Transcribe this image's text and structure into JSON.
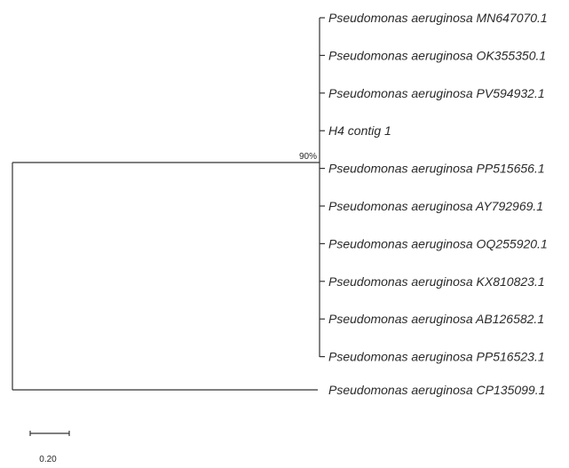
{
  "tree": {
    "leaves": [
      {
        "label": "Pseudomonas aeruginosa MN647070.1"
      },
      {
        "label": "Pseudomonas aeruginosa OK355350.1"
      },
      {
        "label": "Pseudomonas aeruginosa PV594932.1"
      },
      {
        "label": "H4 contig 1"
      },
      {
        "label": "Pseudomonas aeruginosa PP515656.1"
      },
      {
        "label": "Pseudomonas aeruginosa AY792969.1"
      },
      {
        "label": "Pseudomonas aeruginosa OQ255920.1"
      },
      {
        "label": "Pseudomonas aeruginosa KX810823.1"
      },
      {
        "label": "Pseudomonas aeruginosa AB126582.1"
      },
      {
        "label": "Pseudomonas aeruginosa PP516523.1"
      }
    ],
    "outgroup": {
      "label": "Pseudomonas aeruginosa CP135099.1"
    },
    "support": {
      "label": "90%"
    },
    "scale_bar": {
      "label": "0.20"
    },
    "branch_color": "#333333"
  }
}
